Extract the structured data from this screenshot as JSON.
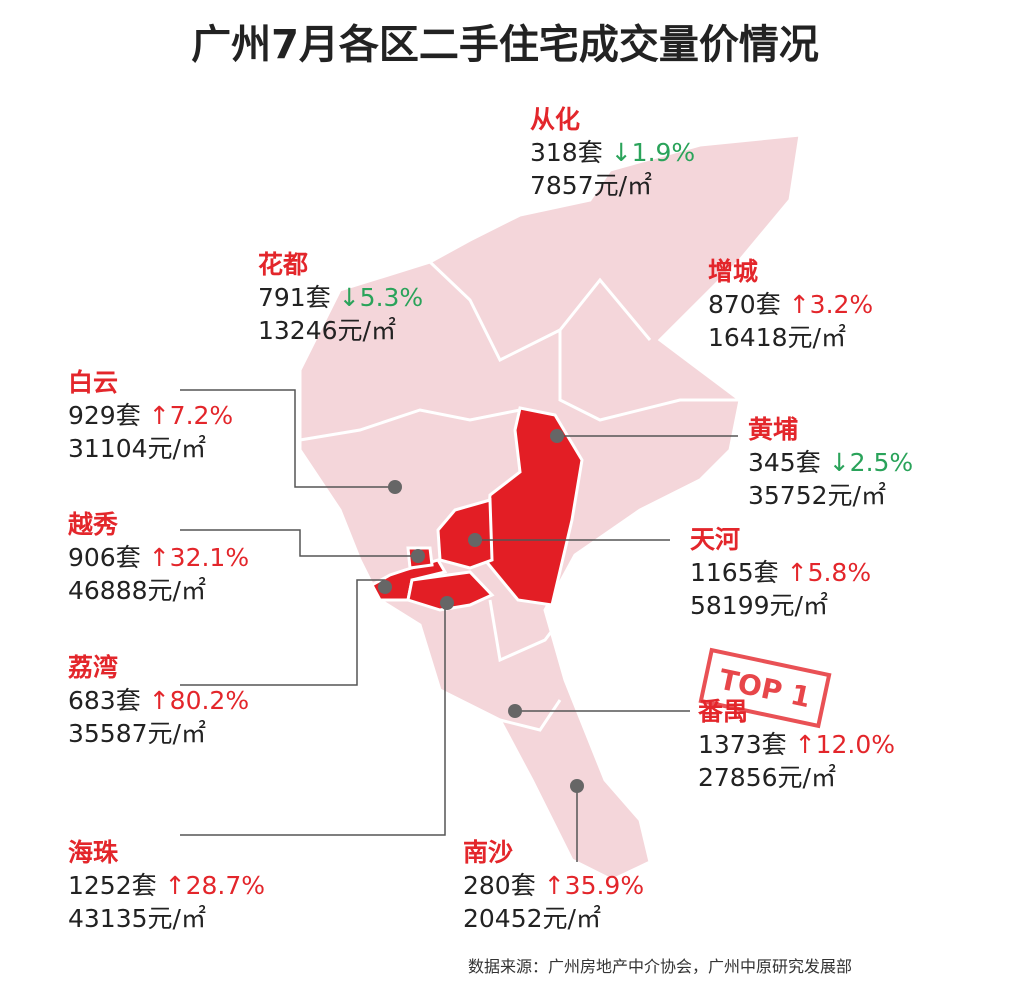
{
  "title": "广州7月各区二手住宅成交量价情况",
  "districts": [
    {
      "name": "从化",
      "volume": "318套",
      "change": "↓1.9%",
      "change_color": "#2aa35a",
      "price": "7857元/㎡"
    },
    {
      "name": "花都",
      "volume": "791套",
      "change": "↓5.3%",
      "change_color": "#2aa35a",
      "price": "13246元/㎡"
    },
    {
      "name": "增城",
      "volume": "870套",
      "change": "↑3.2%",
      "change_color": "#e3262b",
      "price": "16418元/㎡"
    },
    {
      "name": "白云",
      "volume": "929套",
      "change": "↑7.2%",
      "change_color": "#e3262b",
      "price": "31104元/㎡"
    },
    {
      "name": "黄埔",
      "volume": "345套",
      "change": "↓2.5%",
      "change_color": "#2aa35a",
      "price": "35752元/㎡"
    },
    {
      "name": "越秀",
      "volume": "906套",
      "change": "↑32.1%",
      "change_color": "#e3262b",
      "price": "46888元/㎡"
    },
    {
      "name": "天河",
      "volume": "1165套",
      "change": "↑5.8%",
      "change_color": "#e3262b",
      "price": "58199元/㎡"
    },
    {
      "name": "荔湾",
      "volume": "683套",
      "change": "↑80.2%",
      "change_color": "#e3262b",
      "price": "35587元/㎡"
    },
    {
      "name": "番禺",
      "volume": "1373套",
      "change": "↑12.0%",
      "change_color": "#e3262b",
      "price": "27856元/㎡"
    },
    {
      "name": "海珠",
      "volume": "1252套",
      "change": "↑28.7%",
      "change_color": "#e3262b",
      "price": "43135元/㎡"
    },
    {
      "name": "南沙",
      "volume": "280套",
      "change": "↑35.9%",
      "change_color": "#e3262b",
      "price": "20452元/㎡"
    }
  ],
  "stamp": "TOP 1",
  "source": "数据来源：广州房地产中介协会，广州中原研究发展部"
}
